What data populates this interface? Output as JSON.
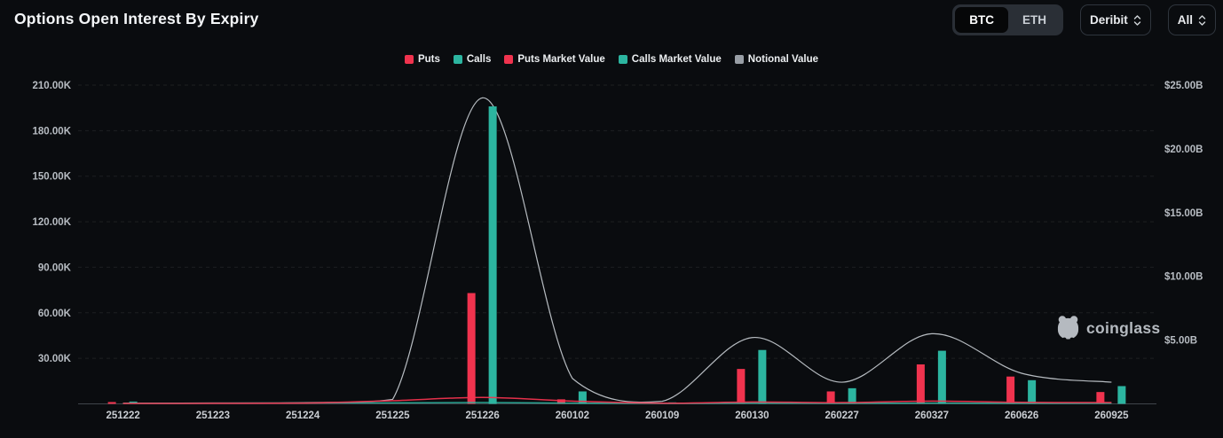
{
  "header": {
    "title": "Options Open Interest By Expiry"
  },
  "controls": {
    "asset_toggle": {
      "options": [
        "BTC",
        "ETH"
      ],
      "selected": "BTC"
    },
    "exchange_select": {
      "value": "Deribit"
    },
    "range_select": {
      "value": "All"
    }
  },
  "legend": [
    {
      "label": "Puts",
      "color": "#f0334e"
    },
    {
      "label": "Calls",
      "color": "#2cb5a0"
    },
    {
      "label": "Puts Market Value",
      "color": "#f0334e"
    },
    {
      "label": "Calls Market Value",
      "color": "#2cb5a0"
    },
    {
      "label": "Notional Value",
      "color": "#989ea5"
    }
  ],
  "watermark": {
    "text": "coinglass"
  },
  "chart_data": {
    "type": "bar",
    "title": "Options Open Interest By Expiry",
    "legend_position": "top",
    "grid": "dashed-horizontal",
    "categories": [
      "251222",
      "251223",
      "251224",
      "251225",
      "251226",
      "260102",
      "260109",
      "260130",
      "260227",
      "260327",
      "260626",
      "260925"
    ],
    "left_axis": {
      "unit": "contracts",
      "ticks": [
        "210.00K",
        "180.00K",
        "150.00K",
        "120.00K",
        "90.00K",
        "60.00K",
        "30.00K"
      ],
      "tick_values": [
        210000,
        180000,
        150000,
        120000,
        90000,
        60000,
        30000
      ],
      "min": 0
    },
    "right_axis": {
      "unit": "USD billions",
      "ticks": [
        "$25.00B",
        "$20.00B",
        "$15.00B",
        "$10.00B",
        "$5.00B"
      ],
      "tick_values": [
        25,
        20,
        15,
        10,
        5
      ],
      "min": 0
    },
    "series": [
      {
        "name": "Puts",
        "type": "bar",
        "yaxis": "left",
        "unit": "contracts",
        "color": "#f0334e",
        "values": [
          1200,
          0,
          0,
          0,
          73000,
          3000,
          0,
          23000,
          8200,
          26000,
          18000,
          7800
        ]
      },
      {
        "name": "Calls",
        "type": "bar",
        "yaxis": "left",
        "unit": "contracts",
        "color": "#2cb5a0",
        "values": [
          1500,
          0,
          0,
          0,
          196000,
          8200,
          1000,
          35500,
          10300,
          35000,
          15600,
          11700
        ]
      },
      {
        "name": "Puts Market Value",
        "type": "line",
        "yaxis": "right",
        "unit": "USD_B",
        "color": "#f0334e",
        "values": [
          0.03,
          0.04,
          0.06,
          0.25,
          0.5,
          0.22,
          0.05,
          0.15,
          0.1,
          0.22,
          0.12,
          0.1
        ]
      },
      {
        "name": "Calls Market Value",
        "type": "line",
        "yaxis": "right",
        "unit": "USD_B",
        "color": "#2cb5a0",
        "values": [
          0.04,
          0.05,
          0.07,
          0.08,
          0.1,
          0.06,
          0.03,
          0.06,
          0.04,
          0.06,
          0.04,
          0.05
        ]
      },
      {
        "name": "Notional Value",
        "type": "line",
        "yaxis": "right",
        "unit": "USD_B",
        "color": "#c9ced4",
        "values": [
          0.05,
          0.07,
          0.1,
          0.35,
          24.0,
          2.0,
          0.2,
          5.2,
          1.7,
          5.5,
          2.4,
          1.7
        ]
      }
    ]
  }
}
